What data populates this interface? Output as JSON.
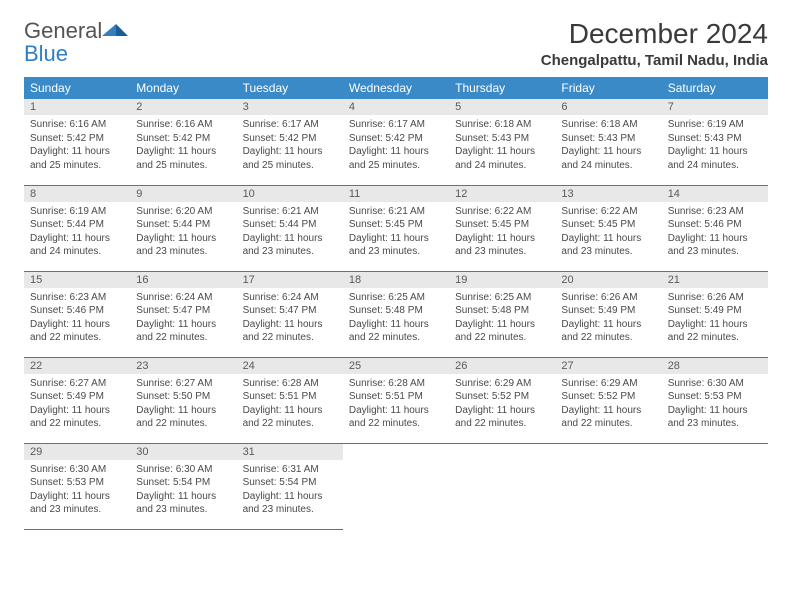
{
  "brand": {
    "name_part1": "General",
    "name_part2": "Blue"
  },
  "title": "December 2024",
  "location": "Chengalpattu, Tamil Nadu, India",
  "colors": {
    "header_bg": "#3a8ac8",
    "header_text": "#ffffff",
    "daynum_bg": "#e8e8e8",
    "row_divider": "#2f7fc2",
    "brand_gray": "#545454",
    "brand_blue": "#2f7fc2"
  },
  "weekdays": [
    "Sunday",
    "Monday",
    "Tuesday",
    "Wednesday",
    "Thursday",
    "Friday",
    "Saturday"
  ],
  "days": [
    {
      "n": "1",
      "sunrise": "Sunrise: 6:16 AM",
      "sunset": "Sunset: 5:42 PM",
      "day1": "Daylight: 11 hours",
      "day2": "and 25 minutes."
    },
    {
      "n": "2",
      "sunrise": "Sunrise: 6:16 AM",
      "sunset": "Sunset: 5:42 PM",
      "day1": "Daylight: 11 hours",
      "day2": "and 25 minutes."
    },
    {
      "n": "3",
      "sunrise": "Sunrise: 6:17 AM",
      "sunset": "Sunset: 5:42 PM",
      "day1": "Daylight: 11 hours",
      "day2": "and 25 minutes."
    },
    {
      "n": "4",
      "sunrise": "Sunrise: 6:17 AM",
      "sunset": "Sunset: 5:42 PM",
      "day1": "Daylight: 11 hours",
      "day2": "and 25 minutes."
    },
    {
      "n": "5",
      "sunrise": "Sunrise: 6:18 AM",
      "sunset": "Sunset: 5:43 PM",
      "day1": "Daylight: 11 hours",
      "day2": "and 24 minutes."
    },
    {
      "n": "6",
      "sunrise": "Sunrise: 6:18 AM",
      "sunset": "Sunset: 5:43 PM",
      "day1": "Daylight: 11 hours",
      "day2": "and 24 minutes."
    },
    {
      "n": "7",
      "sunrise": "Sunrise: 6:19 AM",
      "sunset": "Sunset: 5:43 PM",
      "day1": "Daylight: 11 hours",
      "day2": "and 24 minutes."
    },
    {
      "n": "8",
      "sunrise": "Sunrise: 6:19 AM",
      "sunset": "Sunset: 5:44 PM",
      "day1": "Daylight: 11 hours",
      "day2": "and 24 minutes."
    },
    {
      "n": "9",
      "sunrise": "Sunrise: 6:20 AM",
      "sunset": "Sunset: 5:44 PM",
      "day1": "Daylight: 11 hours",
      "day2": "and 23 minutes."
    },
    {
      "n": "10",
      "sunrise": "Sunrise: 6:21 AM",
      "sunset": "Sunset: 5:44 PM",
      "day1": "Daylight: 11 hours",
      "day2": "and 23 minutes."
    },
    {
      "n": "11",
      "sunrise": "Sunrise: 6:21 AM",
      "sunset": "Sunset: 5:45 PM",
      "day1": "Daylight: 11 hours",
      "day2": "and 23 minutes."
    },
    {
      "n": "12",
      "sunrise": "Sunrise: 6:22 AM",
      "sunset": "Sunset: 5:45 PM",
      "day1": "Daylight: 11 hours",
      "day2": "and 23 minutes."
    },
    {
      "n": "13",
      "sunrise": "Sunrise: 6:22 AM",
      "sunset": "Sunset: 5:45 PM",
      "day1": "Daylight: 11 hours",
      "day2": "and 23 minutes."
    },
    {
      "n": "14",
      "sunrise": "Sunrise: 6:23 AM",
      "sunset": "Sunset: 5:46 PM",
      "day1": "Daylight: 11 hours",
      "day2": "and 23 minutes."
    },
    {
      "n": "15",
      "sunrise": "Sunrise: 6:23 AM",
      "sunset": "Sunset: 5:46 PM",
      "day1": "Daylight: 11 hours",
      "day2": "and 22 minutes."
    },
    {
      "n": "16",
      "sunrise": "Sunrise: 6:24 AM",
      "sunset": "Sunset: 5:47 PM",
      "day1": "Daylight: 11 hours",
      "day2": "and 22 minutes."
    },
    {
      "n": "17",
      "sunrise": "Sunrise: 6:24 AM",
      "sunset": "Sunset: 5:47 PM",
      "day1": "Daylight: 11 hours",
      "day2": "and 22 minutes."
    },
    {
      "n": "18",
      "sunrise": "Sunrise: 6:25 AM",
      "sunset": "Sunset: 5:48 PM",
      "day1": "Daylight: 11 hours",
      "day2": "and 22 minutes."
    },
    {
      "n": "19",
      "sunrise": "Sunrise: 6:25 AM",
      "sunset": "Sunset: 5:48 PM",
      "day1": "Daylight: 11 hours",
      "day2": "and 22 minutes."
    },
    {
      "n": "20",
      "sunrise": "Sunrise: 6:26 AM",
      "sunset": "Sunset: 5:49 PM",
      "day1": "Daylight: 11 hours",
      "day2": "and 22 minutes."
    },
    {
      "n": "21",
      "sunrise": "Sunrise: 6:26 AM",
      "sunset": "Sunset: 5:49 PM",
      "day1": "Daylight: 11 hours",
      "day2": "and 22 minutes."
    },
    {
      "n": "22",
      "sunrise": "Sunrise: 6:27 AM",
      "sunset": "Sunset: 5:49 PM",
      "day1": "Daylight: 11 hours",
      "day2": "and 22 minutes."
    },
    {
      "n": "23",
      "sunrise": "Sunrise: 6:27 AM",
      "sunset": "Sunset: 5:50 PM",
      "day1": "Daylight: 11 hours",
      "day2": "and 22 minutes."
    },
    {
      "n": "24",
      "sunrise": "Sunrise: 6:28 AM",
      "sunset": "Sunset: 5:51 PM",
      "day1": "Daylight: 11 hours",
      "day2": "and 22 minutes."
    },
    {
      "n": "25",
      "sunrise": "Sunrise: 6:28 AM",
      "sunset": "Sunset: 5:51 PM",
      "day1": "Daylight: 11 hours",
      "day2": "and 22 minutes."
    },
    {
      "n": "26",
      "sunrise": "Sunrise: 6:29 AM",
      "sunset": "Sunset: 5:52 PM",
      "day1": "Daylight: 11 hours",
      "day2": "and 22 minutes."
    },
    {
      "n": "27",
      "sunrise": "Sunrise: 6:29 AM",
      "sunset": "Sunset: 5:52 PM",
      "day1": "Daylight: 11 hours",
      "day2": "and 22 minutes."
    },
    {
      "n": "28",
      "sunrise": "Sunrise: 6:30 AM",
      "sunset": "Sunset: 5:53 PM",
      "day1": "Daylight: 11 hours",
      "day2": "and 23 minutes."
    },
    {
      "n": "29",
      "sunrise": "Sunrise: 6:30 AM",
      "sunset": "Sunset: 5:53 PM",
      "day1": "Daylight: 11 hours",
      "day2": "and 23 minutes."
    },
    {
      "n": "30",
      "sunrise": "Sunrise: 6:30 AM",
      "sunset": "Sunset: 5:54 PM",
      "day1": "Daylight: 11 hours",
      "day2": "and 23 minutes."
    },
    {
      "n": "31",
      "sunrise": "Sunrise: 6:31 AM",
      "sunset": "Sunset: 5:54 PM",
      "day1": "Daylight: 11 hours",
      "day2": "and 23 minutes."
    }
  ]
}
